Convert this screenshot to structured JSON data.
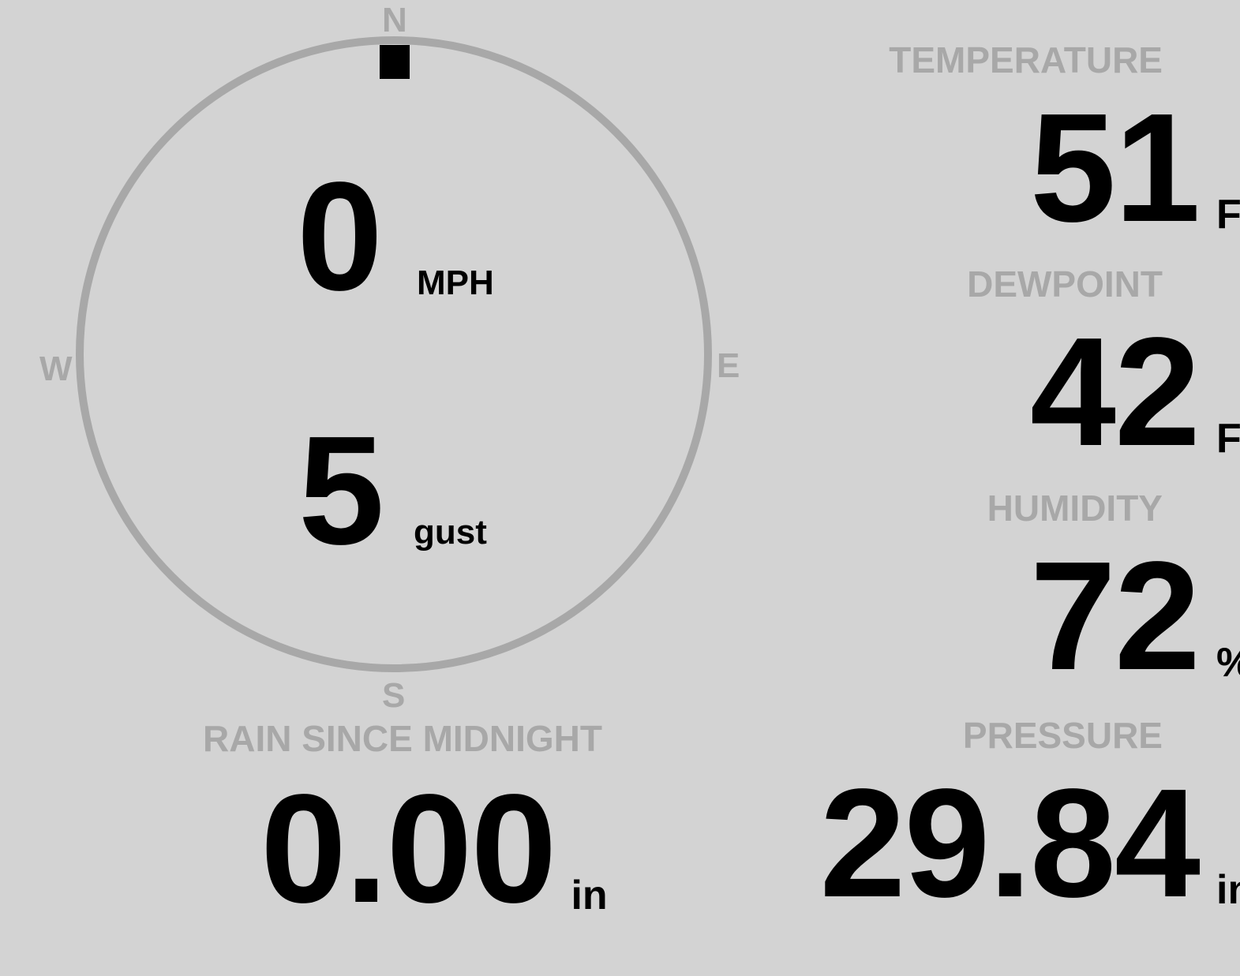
{
  "compass": {
    "labels": {
      "n": "N",
      "e": "E",
      "s": "S",
      "w": "W"
    },
    "wind_direction_deg": 0,
    "wind_speed": "0",
    "wind_speed_unit": "MPH",
    "gust": "5",
    "gust_unit": "gust"
  },
  "temperature": {
    "label": "TEMPERATURE",
    "value": "51",
    "unit": "F"
  },
  "dewpoint": {
    "label": "DEWPOINT",
    "value": "42",
    "unit": "F"
  },
  "humidity": {
    "label": "HUMIDITY",
    "value": "72",
    "unit": "%"
  },
  "pressure": {
    "label": "PRESSURE",
    "value": "29.84",
    "unit": "in"
  },
  "rain": {
    "label": "RAIN SINCE MIDNIGHT",
    "value": "0.00",
    "unit": "in"
  },
  "colors": {
    "background": "#d3d3d3",
    "muted": "#a8a8a8",
    "value": "#000000"
  }
}
